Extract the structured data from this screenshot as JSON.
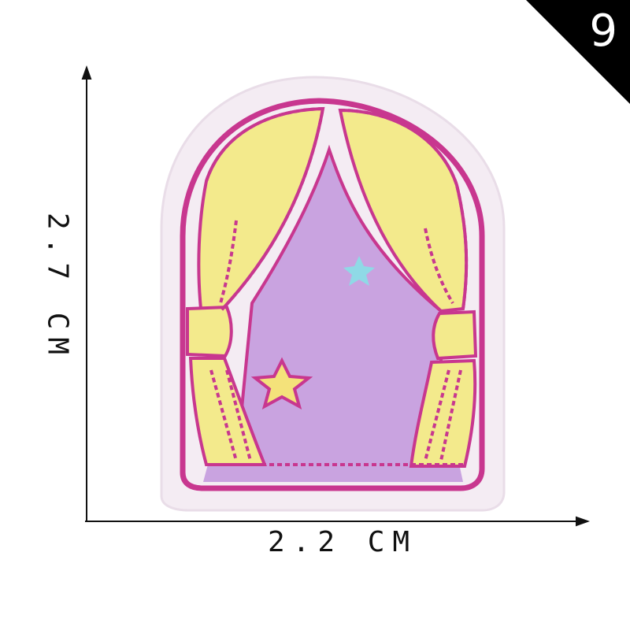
{
  "badge": {
    "number": "9",
    "color": "#000000"
  },
  "dimensions": {
    "width_label": "2.2 CM",
    "height_label": "2.7 CM",
    "arrow_color": "#111111"
  },
  "patch": {
    "felt_color": "#f4ecf3",
    "border_color": "#c8378f",
    "curtain_color": "#f3ea8c",
    "stage_color": "#c9a3e0",
    "star_color": "#f4e27a",
    "star_small_color": "#8fd9e6",
    "subject": "embroidered-theater-curtain-patch"
  }
}
